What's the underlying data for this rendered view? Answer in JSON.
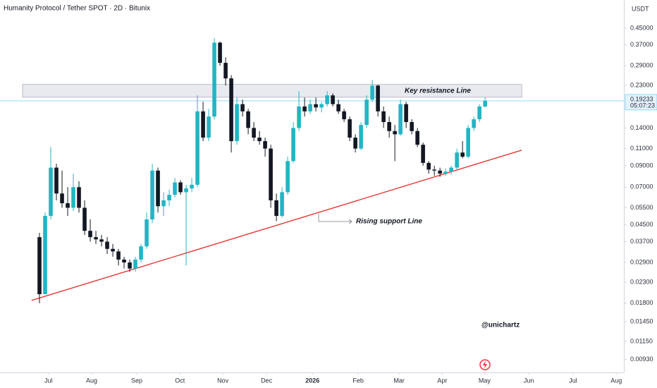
{
  "chart_data": {
    "type": "candlestick",
    "title": "Humanity Protocol / Tether SPOT · 2D · Bitunix",
    "currency": "USDT",
    "countdown": "05:07:23",
    "up_color": "#22b5c4",
    "down_color": "#131722",
    "log_scale": true,
    "grid": false,
    "ylim": [
      0.008,
      0.626
    ],
    "yticks": [
      {
        "value": 0.45,
        "label": "0.45000"
      },
      {
        "value": 0.37,
        "label": "0.37000"
      },
      {
        "value": 0.29,
        "label": "0.29000"
      },
      {
        "value": 0.23,
        "label": "0.23000"
      },
      {
        "value": 0.14,
        "label": "0.14000"
      },
      {
        "value": 0.11,
        "label": "0.11000"
      },
      {
        "value": 0.09,
        "label": "0.09000"
      },
      {
        "value": 0.07,
        "label": "0.07000"
      },
      {
        "value": 0.055,
        "label": "0.05500"
      },
      {
        "value": 0.045,
        "label": "0.04500"
      },
      {
        "value": 0.037,
        "label": "0.03700"
      },
      {
        "value": 0.029,
        "label": "0.02900"
      },
      {
        "value": 0.023,
        "label": "0.02300"
      },
      {
        "value": 0.018,
        "label": "0.01800"
      },
      {
        "value": 0.0145,
        "label": "0.01450"
      },
      {
        "value": 0.0115,
        "label": "0.01150"
      },
      {
        "value": 0.0093,
        "label": "0.00930"
      }
    ],
    "xlim": [
      -7,
      103.6
    ],
    "xticks": [
      {
        "value": 1.6,
        "label": "Jul"
      },
      {
        "value": 9.25,
        "label": "Aug"
      },
      {
        "value": 17.25,
        "label": "Sep"
      },
      {
        "value": 24.9,
        "label": "Oct"
      },
      {
        "value": 32.5,
        "label": "Nov"
      },
      {
        "value": 40.25,
        "label": "Dec"
      },
      {
        "value": 48.4,
        "label": "2026"
      },
      {
        "value": 56.5,
        "label": "Feb"
      },
      {
        "value": 63.75,
        "label": "Mar"
      },
      {
        "value": 71.4,
        "label": "Apr"
      },
      {
        "value": 78.9,
        "label": "May"
      },
      {
        "value": 86.75,
        "label": "Jun"
      },
      {
        "value": 94.6,
        "label": "Jul"
      },
      {
        "value": 102.25,
        "label": "Aug"
      }
    ],
    "ohlc": [
      [
        0.039,
        0.041,
        0.018,
        0.02
      ],
      [
        0.02,
        0.052,
        0.02,
        0.05
      ],
      [
        0.05,
        0.112,
        0.048,
        0.088
      ],
      [
        0.088,
        0.092,
        0.06,
        0.065
      ],
      [
        0.065,
        0.085,
        0.055,
        0.058
      ],
      [
        0.058,
        0.07,
        0.05,
        0.055
      ],
      [
        0.055,
        0.082,
        0.053,
        0.07
      ],
      [
        0.07,
        0.075,
        0.052,
        0.055
      ],
      [
        0.055,
        0.06,
        0.04,
        0.042
      ],
      [
        0.042,
        0.048,
        0.037,
        0.039
      ],
      [
        0.039,
        0.042,
        0.036,
        0.038
      ],
      [
        0.038,
        0.04,
        0.035,
        0.037
      ],
      [
        0.037,
        0.039,
        0.032,
        0.034
      ],
      [
        0.034,
        0.036,
        0.031,
        0.033
      ],
      [
        0.033,
        0.034,
        0.028,
        0.03
      ],
      [
        0.03,
        0.031,
        0.027,
        0.029
      ],
      [
        0.029,
        0.03,
        0.026,
        0.027
      ],
      [
        0.027,
        0.031,
        0.026,
        0.03
      ],
      [
        0.03,
        0.036,
        0.029,
        0.035
      ],
      [
        0.035,
        0.052,
        0.034,
        0.048
      ],
      [
        0.048,
        0.092,
        0.046,
        0.085
      ],
      [
        0.085,
        0.088,
        0.052,
        0.056
      ],
      [
        0.056,
        0.066,
        0.05,
        0.06
      ],
      [
        0.06,
        0.068,
        0.056,
        0.064
      ],
      [
        0.064,
        0.078,
        0.062,
        0.074
      ],
      [
        0.074,
        0.076,
        0.064,
        0.066
      ],
      [
        0.066,
        0.072,
        0.028,
        0.069
      ],
      [
        0.069,
        0.078,
        0.066,
        0.072
      ],
      [
        0.072,
        0.205,
        0.07,
        0.17
      ],
      [
        0.17,
        0.19,
        0.12,
        0.125
      ],
      [
        0.125,
        0.175,
        0.12,
        0.16
      ],
      [
        0.16,
        0.4,
        0.155,
        0.38
      ],
      [
        0.38,
        0.385,
        0.29,
        0.3
      ],
      [
        0.3,
        0.32,
        0.23,
        0.25
      ],
      [
        0.25,
        0.26,
        0.105,
        0.12
      ],
      [
        0.12,
        0.2,
        0.115,
        0.185
      ],
      [
        0.185,
        0.195,
        0.16,
        0.17
      ],
      [
        0.17,
        0.175,
        0.13,
        0.14
      ],
      [
        0.14,
        0.15,
        0.12,
        0.125
      ],
      [
        0.125,
        0.135,
        0.115,
        0.12
      ],
      [
        0.12,
        0.125,
        0.1,
        0.11
      ],
      [
        0.11,
        0.115,
        0.055,
        0.06
      ],
      [
        0.06,
        0.065,
        0.047,
        0.05
      ],
      [
        0.05,
        0.07,
        0.049,
        0.066
      ],
      [
        0.066,
        0.1,
        0.064,
        0.095
      ],
      [
        0.095,
        0.15,
        0.093,
        0.14
      ],
      [
        0.14,
        0.215,
        0.135,
        0.18
      ],
      [
        0.18,
        0.2,
        0.16,
        0.17
      ],
      [
        0.17,
        0.195,
        0.165,
        0.185
      ],
      [
        0.185,
        0.2,
        0.17,
        0.178
      ],
      [
        0.178,
        0.19,
        0.168,
        0.185
      ],
      [
        0.185,
        0.215,
        0.18,
        0.205
      ],
      [
        0.205,
        0.21,
        0.18,
        0.185
      ],
      [
        0.185,
        0.195,
        0.165,
        0.17
      ],
      [
        0.17,
        0.175,
        0.15,
        0.155
      ],
      [
        0.155,
        0.16,
        0.12,
        0.125
      ],
      [
        0.125,
        0.13,
        0.105,
        0.11
      ],
      [
        0.11,
        0.15,
        0.108,
        0.145
      ],
      [
        0.145,
        0.205,
        0.14,
        0.195
      ],
      [
        0.195,
        0.245,
        0.19,
        0.23
      ],
      [
        0.23,
        0.232,
        0.16,
        0.17
      ],
      [
        0.17,
        0.18,
        0.14,
        0.15
      ],
      [
        0.15,
        0.16,
        0.125,
        0.135
      ],
      [
        0.135,
        0.145,
        0.095,
        0.13
      ],
      [
        0.13,
        0.195,
        0.128,
        0.185
      ],
      [
        0.185,
        0.19,
        0.14,
        0.15
      ],
      [
        0.15,
        0.155,
        0.13,
        0.135
      ],
      [
        0.135,
        0.14,
        0.112,
        0.115
      ],
      [
        0.115,
        0.118,
        0.09,
        0.093
      ],
      [
        0.093,
        0.095,
        0.082,
        0.086
      ],
      [
        0.086,
        0.09,
        0.08,
        0.085
      ],
      [
        0.085,
        0.088,
        0.079,
        0.082
      ],
      [
        0.082,
        0.087,
        0.08,
        0.084
      ],
      [
        0.084,
        0.09,
        0.081,
        0.088
      ],
      [
        0.088,
        0.11,
        0.086,
        0.105
      ],
      [
        0.105,
        0.12,
        0.098,
        0.1
      ],
      [
        0.1,
        0.145,
        0.098,
        0.14
      ],
      [
        0.14,
        0.16,
        0.135,
        0.155
      ],
      [
        0.155,
        0.185,
        0.15,
        0.18
      ],
      [
        0.18,
        0.2,
        0.178,
        0.19233
      ]
    ],
    "resistance_zone": {
      "label": "Key resistance Line",
      "x": [
        -3,
        85.5
      ],
      "y": [
        0.2005,
        0.233
      ]
    },
    "support_line": {
      "label": "Rising support Line",
      "color": "#e53935",
      "x": [
        -1.4,
        85.5
      ],
      "y": [
        0.0186,
        0.108
      ]
    },
    "watermark": "@unichartz"
  }
}
